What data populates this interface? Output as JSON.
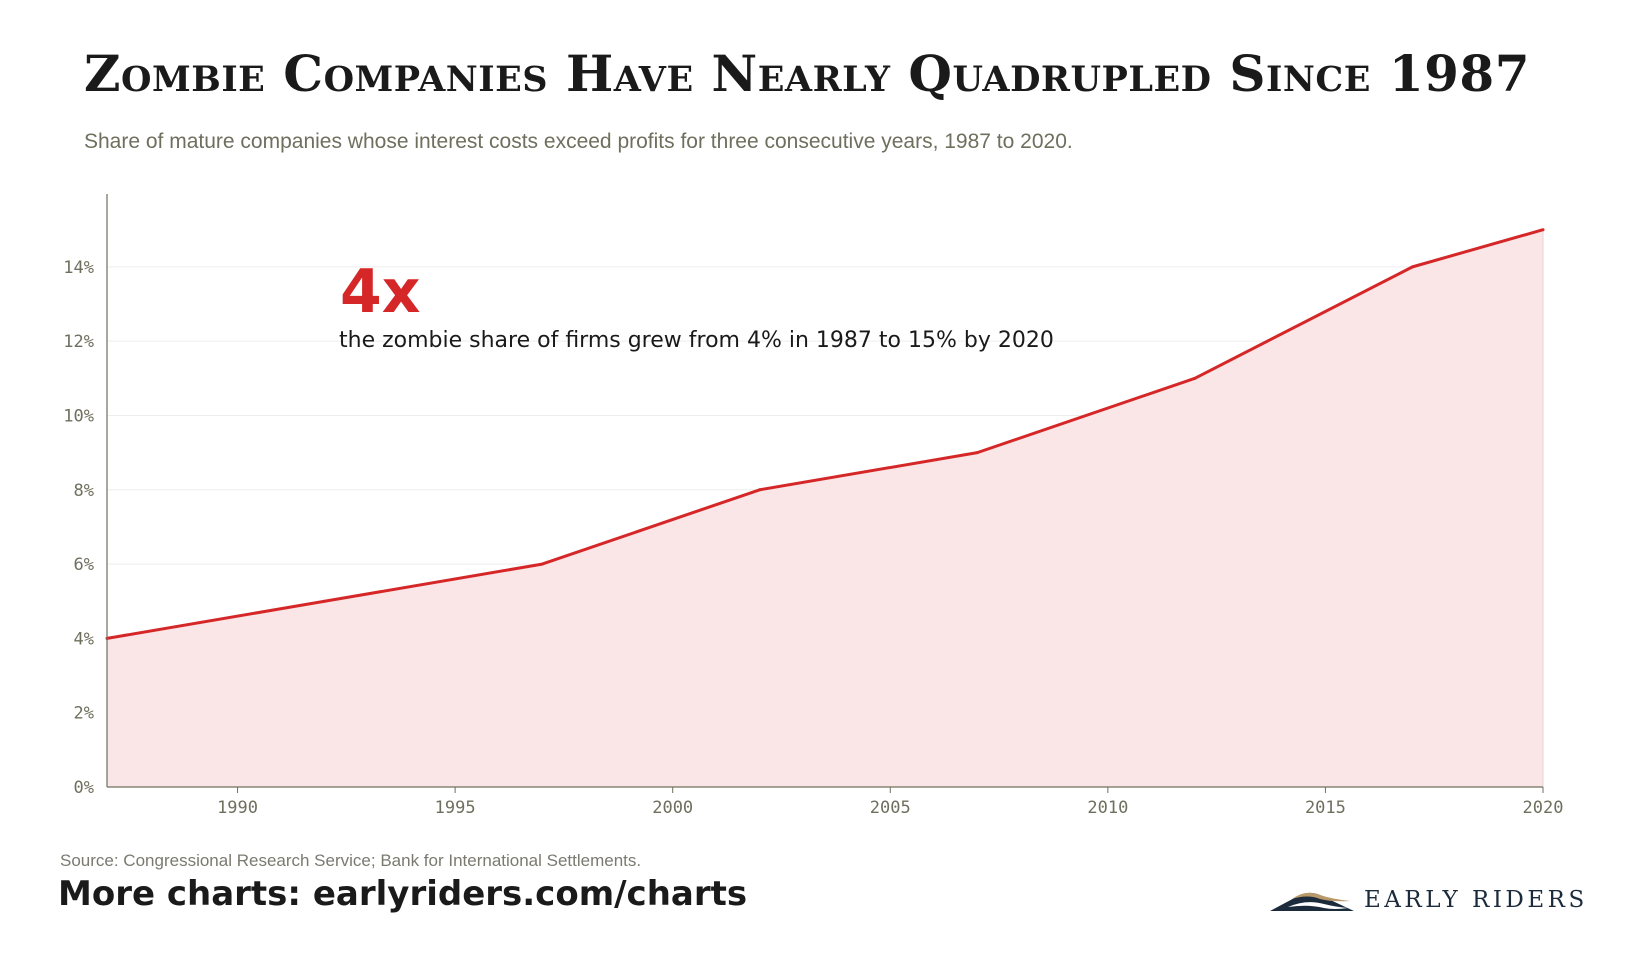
{
  "title": "Zombie Companies Have Nearly Quadrupled Since 1987",
  "subtitle": "Share of mature companies whose interest costs exceed profits for three consecutive years, 1987 to 2020.",
  "annotation": {
    "headline": "4x",
    "text": "the zombie share of firms grew from 4% in 1987 to 15% by 2020"
  },
  "footer": {
    "source": "Source: Congressional Research Service; Bank for International Settlements.",
    "more_charts": "More charts: earlyriders.com/charts",
    "brand": "EARLY RIDERS"
  },
  "colors": {
    "line": "#d62728",
    "area": "#fae6e7",
    "axis": "#6f6f5e",
    "grid": "#eeeeee",
    "logo_navy": "#1c2b3c",
    "logo_gold": "#b8996a"
  },
  "chart_data": {
    "type": "area",
    "x": [
      1987,
      1992,
      1997,
      2002,
      2007,
      2012,
      2017,
      2020
    ],
    "series": [
      {
        "values": [
          4,
          5,
          6,
          8,
          9,
          11,
          14,
          15
        ]
      }
    ],
    "xlim": [
      1987,
      2020
    ],
    "ylim": [
      0,
      15.8
    ],
    "x_ticks": [
      1990,
      1995,
      2000,
      2005,
      2010,
      2015,
      2020
    ],
    "x_tick_labels": [
      "1990",
      "1995",
      "2000",
      "2005",
      "2010",
      "2015",
      "2020"
    ],
    "y_ticks": [
      0,
      2,
      4,
      6,
      8,
      10,
      12,
      14
    ],
    "y_tick_labels": [
      "0%",
      "2%",
      "4%",
      "6%",
      "8%",
      "10%",
      "12%",
      "14%"
    ],
    "grid": true,
    "legend": "none"
  }
}
